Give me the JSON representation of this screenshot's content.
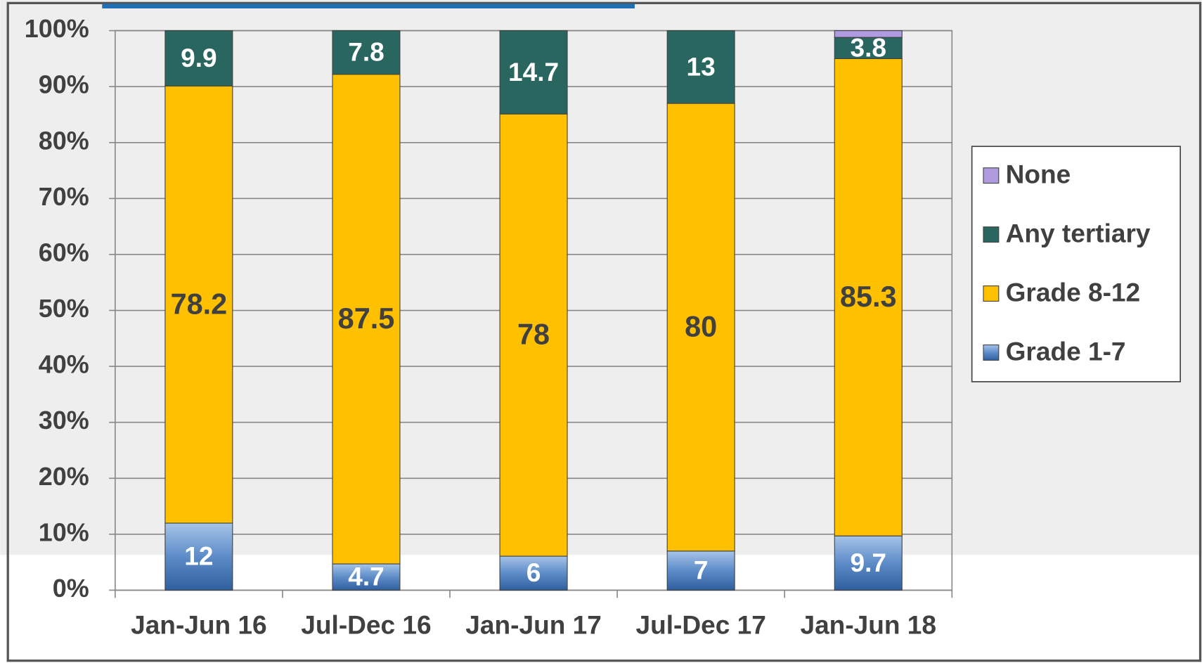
{
  "chart_data": {
    "type": "stacked_percent_bar",
    "categories": [
      "Jan-Jun 16",
      "Jul-Dec 16",
      "Jan-Jun 17",
      "Jul-Dec 17",
      "Jan-Jun 18"
    ],
    "series": [
      {
        "name": "Grade 1-7",
        "color": "#4f81bd",
        "label_color": "#ffffff",
        "show_labels": true,
        "values": [
          12,
          4.7,
          6,
          7,
          9.7
        ]
      },
      {
        "name": "Grade 8-12",
        "color": "#ffc000",
        "label_color": "#404040",
        "show_labels": true,
        "values": [
          78.2,
          87.5,
          78,
          80,
          85.3
        ]
      },
      {
        "name": "Any tertiary",
        "color": "#2a6660",
        "label_color": "#ffffff",
        "show_labels": true,
        "values": [
          9.9,
          7.8,
          14.7,
          13,
          3.8
        ]
      },
      {
        "name": "None",
        "color": "#b09ae0",
        "label_color": "#ffffff",
        "show_labels": false,
        "values": [
          0,
          0,
          0,
          0,
          1.2
        ]
      }
    ],
    "ylim": [
      0,
      100
    ],
    "yticks": [
      {
        "value": 0,
        "label": "0%"
      },
      {
        "value": 10,
        "label": "10%"
      },
      {
        "value": 20,
        "label": "20%"
      },
      {
        "value": 30,
        "label": "30%"
      },
      {
        "value": 40,
        "label": "40%"
      },
      {
        "value": 50,
        "label": "50%"
      },
      {
        "value": 60,
        "label": "60%"
      },
      {
        "value": 70,
        "label": "70%"
      },
      {
        "value": 80,
        "label": "80%"
      },
      {
        "value": 90,
        "label": "90%"
      },
      {
        "value": 100,
        "label": "100%"
      }
    ],
    "grid": true,
    "legend": "right"
  }
}
